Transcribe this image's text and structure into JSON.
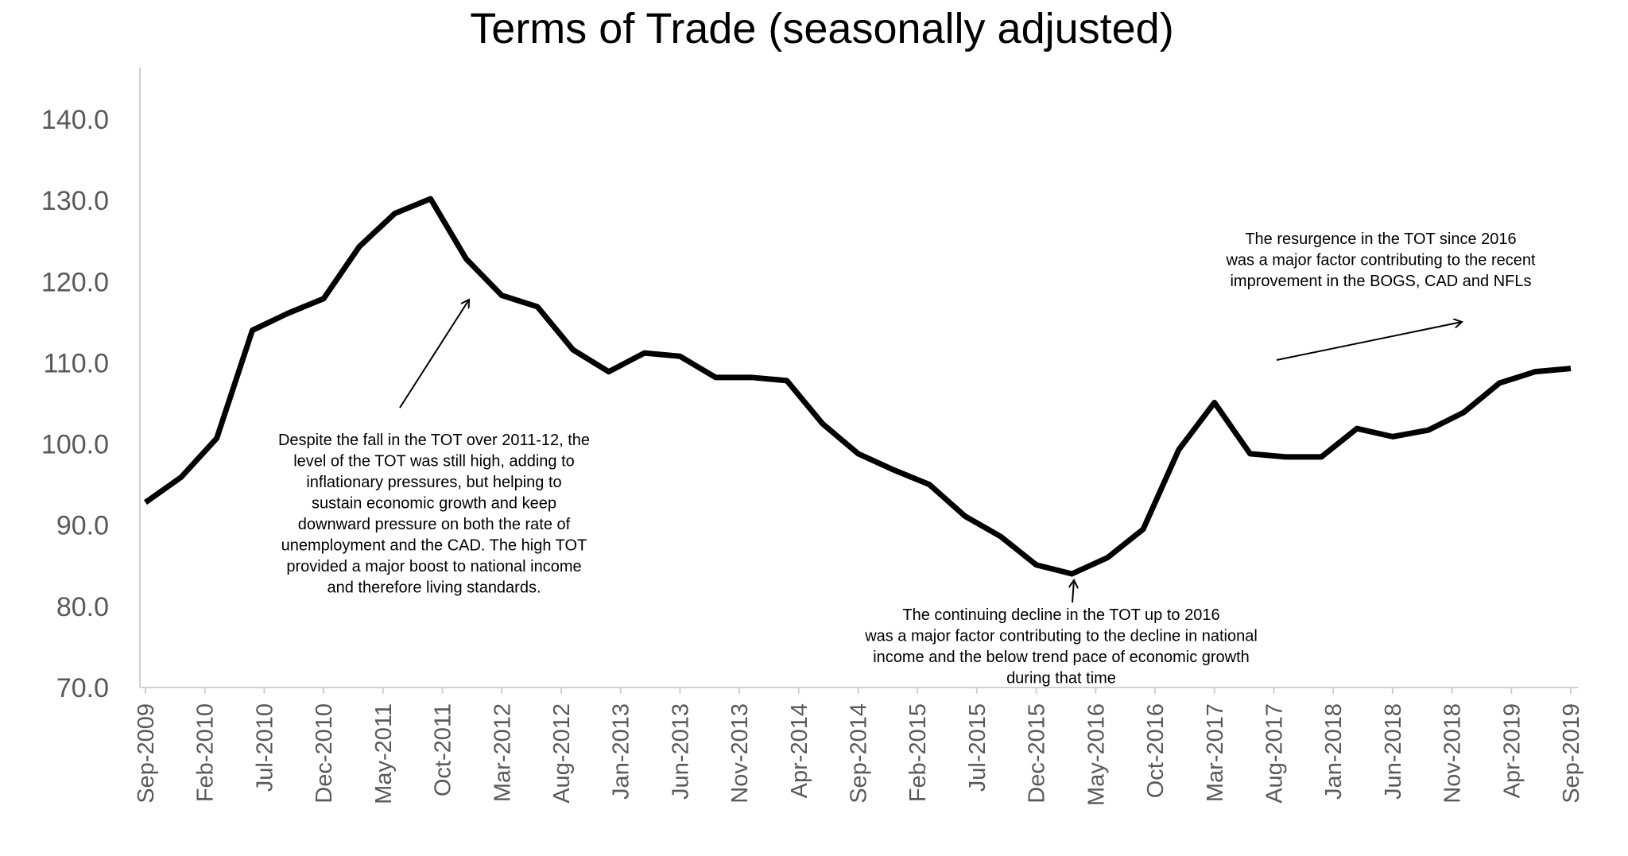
{
  "chart_data": {
    "type": "line",
    "title": "Terms of Trade (seasonally adjusted)",
    "xlabel": "",
    "ylabel": "",
    "ylim": [
      70,
      140
    ],
    "yticks": [
      "70.0",
      "80.0",
      "90.0",
      "100.0",
      "110.0",
      "120.0",
      "130.0",
      "140.0"
    ],
    "xtick_labels": [
      "Sep-2009",
      "Feb-2010",
      "Jul-2010",
      "Dec-2010",
      "May-2011",
      "Oct-2011",
      "Mar-2012",
      "Aug-2012",
      "Jan-2013",
      "Jun-2013",
      "Nov-2013",
      "Apr-2014",
      "Sep-2014",
      "Feb-2015",
      "Jul-2015",
      "Dec-2015",
      "May-2016",
      "Oct-2016",
      "Mar-2017",
      "Aug-2017",
      "Jan-2018",
      "Jun-2018",
      "Nov-2018",
      "Apr-2019",
      "Sep-2019"
    ],
    "grid": false,
    "series": [
      {
        "color": "#000000",
        "x": [
          "Sep-2009",
          "Dec-2009",
          "Mar-2010",
          "Jun-2010",
          "Sep-2010",
          "Dec-2010",
          "Mar-2011",
          "Jun-2011",
          "Sep-2011",
          "Dec-2011",
          "Mar-2012",
          "Jun-2012",
          "Sep-2012",
          "Dec-2012",
          "Mar-2013",
          "Jun-2013",
          "Sep-2013",
          "Dec-2013",
          "Mar-2014",
          "Jun-2014",
          "Sep-2014",
          "Dec-2014",
          "Mar-2015",
          "Jun-2015",
          "Sep-2015",
          "Dec-2015",
          "Mar-2016",
          "Jun-2016",
          "Sep-2016",
          "Dec-2016",
          "Mar-2017",
          "Jun-2017",
          "Sep-2017",
          "Dec-2017",
          "Mar-2018",
          "Jun-2018",
          "Sep-2018",
          "Dec-2018",
          "Mar-2019",
          "Jun-2019",
          "Sep-2019"
        ],
        "values": [
          92.8,
          95.9,
          100.7,
          114.0,
          116.1,
          117.9,
          124.3,
          128.4,
          130.2,
          122.8,
          118.3,
          116.9,
          111.6,
          108.9,
          111.2,
          110.8,
          108.2,
          108.2,
          107.8,
          102.5,
          98.8,
          96.8,
          95.0,
          91.1,
          88.6,
          85.1,
          84.0,
          86.0,
          89.5,
          99.3,
          105.1,
          98.8,
          98.4,
          98.4,
          101.9,
          100.9,
          101.7,
          103.9,
          107.5,
          108.9,
          109.3
        ]
      }
    ],
    "annotations": [
      {
        "lines": [
          "Despite the fall in the TOT over 2011-12, the",
          "level of the TOT was still high, adding to",
          "inflationary pressures, but helping to",
          "sustain economic growth and keep",
          "downward pressure on both the rate of",
          "unemployment and the CAD.  The high TOT",
          "provided a major boost to national income",
          "and therefore living standards."
        ]
      },
      {
        "lines": [
          "The continuing decline in the TOT up to 2016",
          "was a major factor contributing to the decline in national",
          "income and the below trend pace of economic growth",
          "during that time"
        ]
      },
      {
        "lines": [
          "The resurgence in the TOT since  2016",
          "was a major factor contributing to the recent",
          "improvement in the BOGS, CAD and NFLs"
        ]
      }
    ]
  }
}
